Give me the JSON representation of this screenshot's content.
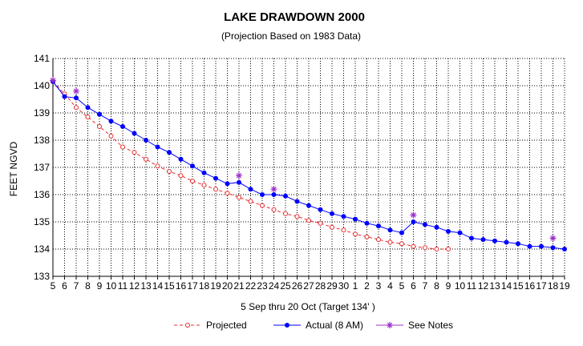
{
  "chart_data": {
    "type": "line",
    "title": "LAKE DRAWDOWN 2000",
    "subtitle": "(Projection Based on 1983 Data)",
    "xlabel": "5 Sep thru 20 Oct (Target 134' )",
    "ylabel": "FEET NGVD",
    "ylim": [
      133,
      141
    ],
    "yticks": [
      "133",
      "134",
      "135",
      "136",
      "137",
      "138",
      "139",
      "140",
      "141"
    ],
    "grid": true,
    "legend_position": "bottom",
    "x_tick_labels": [
      "5",
      "6",
      "7",
      "8",
      "9",
      "10",
      "11",
      "12",
      "13",
      "14",
      "15",
      "16",
      "17",
      "18",
      "19",
      "20",
      "21",
      "22",
      "23",
      "24",
      "25",
      "26",
      "27",
      "28",
      "29",
      "30",
      "1",
      "2",
      "3",
      "4",
      "5",
      "6",
      "7",
      "8",
      "9",
      "10",
      "11",
      "12",
      "13",
      "14",
      "15",
      "16",
      "17",
      "18",
      "19"
    ],
    "series": [
      {
        "name": "Projected",
        "color": "#e8282a",
        "line_style": "dashed",
        "marker": "open-circle",
        "start_index": 0,
        "values": [
          140.15,
          139.7,
          139.2,
          138.85,
          138.5,
          138.15,
          137.75,
          137.55,
          137.3,
          137.05,
          136.85,
          136.7,
          136.5,
          136.35,
          136.2,
          136.05,
          135.9,
          135.75,
          135.6,
          135.45,
          135.3,
          135.2,
          135.05,
          134.95,
          134.8,
          134.7,
          134.55,
          134.45,
          134.35,
          134.25,
          134.2,
          134.1,
          134.05,
          134.0,
          134.0
        ]
      },
      {
        "name": "Actual  (8 AM)",
        "color": "#0000ff",
        "line_style": "solid",
        "marker": "filled-circle",
        "start_index": 0,
        "values": [
          140.15,
          139.6,
          139.55,
          139.2,
          138.95,
          138.7,
          138.5,
          138.25,
          138.0,
          137.75,
          137.55,
          137.3,
          137.05,
          136.8,
          136.6,
          136.4,
          136.45,
          136.2,
          136.0,
          136.0,
          135.95,
          135.75,
          135.6,
          135.45,
          135.3,
          135.2,
          135.1,
          134.95,
          134.85,
          134.7,
          134.6,
          135.0,
          134.9,
          134.8,
          134.65,
          134.6,
          134.4,
          134.35,
          134.3,
          134.25,
          134.2,
          134.1,
          134.1,
          134.05,
          134.0
        ]
      },
      {
        "name": "See Notes",
        "color": "#9b30c8",
        "marker": "star",
        "points": [
          {
            "x_index": 0,
            "y": 140.2
          },
          {
            "x_index": 2,
            "y": 139.8
          },
          {
            "x_index": 16,
            "y": 136.7
          },
          {
            "x_index": 19,
            "y": 136.2
          },
          {
            "x_index": 31,
            "y": 135.25
          },
          {
            "x_index": 43,
            "y": 134.4
          }
        ]
      }
    ]
  }
}
